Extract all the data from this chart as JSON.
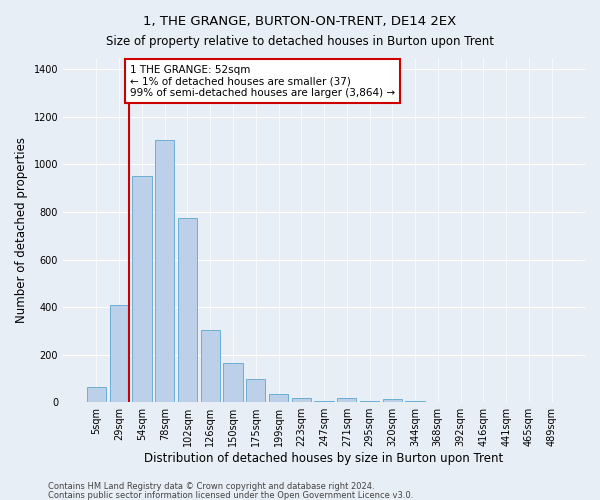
{
  "title": "1, THE GRANGE, BURTON-ON-TRENT, DE14 2EX",
  "subtitle": "Size of property relative to detached houses in Burton upon Trent",
  "xlabel": "Distribution of detached houses by size in Burton upon Trent",
  "ylabel": "Number of detached properties",
  "footnote1": "Contains HM Land Registry data © Crown copyright and database right 2024.",
  "footnote2": "Contains public sector information licensed under the Open Government Licence v3.0.",
  "categories": [
    "5sqm",
    "29sqm",
    "54sqm",
    "78sqm",
    "102sqm",
    "126sqm",
    "150sqm",
    "175sqm",
    "199sqm",
    "223sqm",
    "247sqm",
    "271sqm",
    "295sqm",
    "320sqm",
    "344sqm",
    "368sqm",
    "392sqm",
    "416sqm",
    "441sqm",
    "465sqm",
    "489sqm"
  ],
  "bar_values": [
    65,
    410,
    950,
    1105,
    775,
    305,
    165,
    97,
    35,
    18,
    5,
    18,
    3,
    12,
    3,
    2,
    2,
    2,
    2,
    2,
    2
  ],
  "bar_color": "#bdd0e9",
  "bar_edge_color": "#6baed6",
  "vline_color": "#cc0000",
  "annotation_text": "1 THE GRANGE: 52sqm\n← 1% of detached houses are smaller (37)\n99% of semi-detached houses are larger (3,864) →",
  "annotation_box_color": "#cc0000",
  "ylim": [
    0,
    1450
  ],
  "yticks": [
    0,
    200,
    400,
    600,
    800,
    1000,
    1200,
    1400
  ],
  "background_color": "#e8eef5",
  "grid_color": "#ffffff",
  "title_fontsize": 9.5,
  "axis_label_fontsize": 8.5,
  "tick_fontsize": 7,
  "annotation_fontsize": 7.5,
  "footnote_fontsize": 6
}
